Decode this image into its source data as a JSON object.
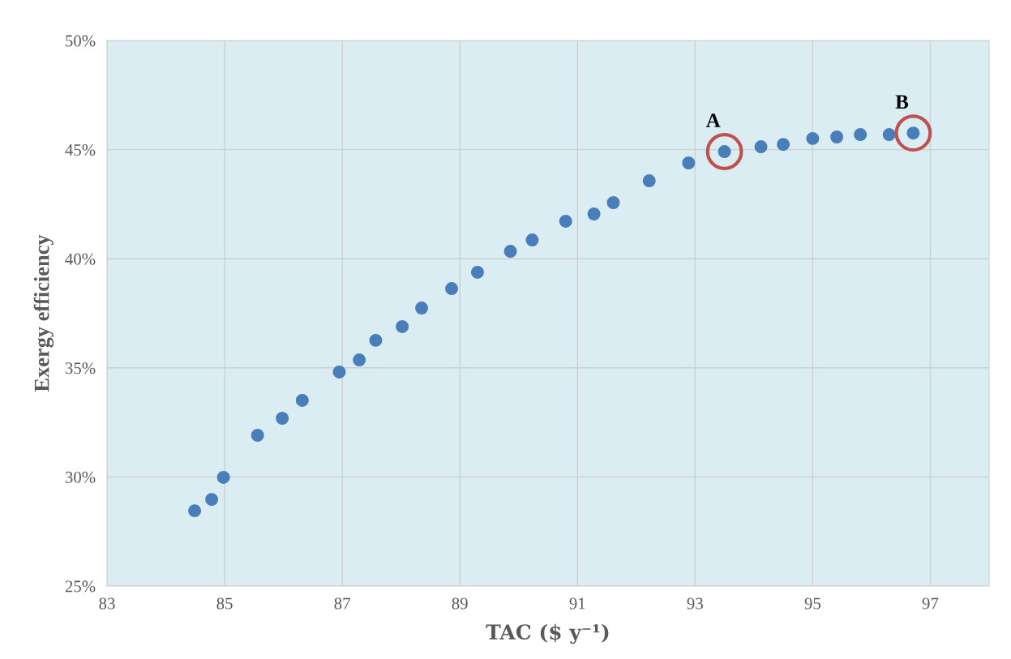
{
  "chart_data": {
    "type": "scatter",
    "xlabel": "TAC ($ y⁻¹)",
    "ylabel": "Exergy efficiency",
    "x": [
      84.49,
      84.78,
      84.98,
      85.56,
      85.98,
      86.32,
      86.95,
      87.29,
      87.57,
      88.02,
      88.35,
      88.86,
      89.3,
      89.86,
      90.23,
      90.8,
      91.28,
      91.61,
      92.22,
      92.89,
      93.5,
      94.12,
      94.5,
      95.0,
      95.41,
      95.81,
      96.3,
      96.71
    ],
    "series": [
      {
        "color": "#4a7ebb",
        "values": [
          28.45,
          28.97,
          29.98,
          31.91,
          32.69,
          33.51,
          34.81,
          35.36,
          36.26,
          36.89,
          37.74,
          38.63,
          39.38,
          40.34,
          40.86,
          41.72,
          42.05,
          42.57,
          43.57,
          44.39,
          44.91,
          45.13,
          45.24,
          45.51,
          45.58,
          45.69,
          45.69,
          45.76
        ]
      }
    ],
    "xlim": [
      83,
      98
    ],
    "xticks": [
      83,
      85,
      87,
      89,
      91,
      93,
      95,
      97
    ],
    "ylim": [
      25,
      50
    ],
    "yticks": [
      {
        "value": 25,
        "label": "25%"
      },
      {
        "value": 30,
        "label": "30%"
      },
      {
        "value": 35,
        "label": "35%"
      },
      {
        "value": 40,
        "label": "40%"
      },
      {
        "value": 45,
        "label": "45%"
      },
      {
        "value": 50,
        "label": "50%"
      }
    ],
    "annotations": [
      {
        "text": "A",
        "x": 93.5,
        "y": 44.91
      },
      {
        "text": "B",
        "x": 96.71,
        "y": 45.76
      }
    ],
    "grid": true,
    "marker": "circle"
  }
}
